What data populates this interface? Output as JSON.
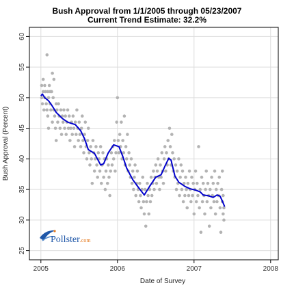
{
  "chart_data": {
    "type": "scatter",
    "title": "Bush Approval from 1/1/2005 through 05/23/2007",
    "subtitle": "Current Trend Estimate: 32.2%",
    "xlabel": "Date of Survey",
    "ylabel": "Bush Approval (Percent)",
    "xlim": [
      2004.85,
      2008.1
    ],
    "ylim": [
      23.5,
      61.5
    ],
    "xticks": [
      2005,
      2006,
      2007,
      2008
    ],
    "xtick_labels": [
      "2005",
      "2006",
      "2007",
      "2008"
    ],
    "yticks": [
      25,
      30,
      35,
      40,
      45,
      50,
      55,
      60
    ],
    "ytick_labels": [
      "25",
      "30",
      "35",
      "40",
      "45",
      "50",
      "55",
      "60"
    ],
    "grid": true,
    "colors": {
      "points": "#b3b3b3",
      "trend": "#0000cc",
      "frame": "#000000",
      "grid": "#dcdcdc"
    },
    "points": [
      [
        2005.01,
        52
      ],
      [
        2005.01,
        50
      ],
      [
        2005.02,
        49
      ],
      [
        2005.03,
        53
      ],
      [
        2005.03,
        51
      ],
      [
        2005.04,
        48
      ],
      [
        2005.05,
        52
      ],
      [
        2005.05,
        50
      ],
      [
        2005.06,
        51
      ],
      [
        2005.07,
        49
      ],
      [
        2005.08,
        57
      ],
      [
        2005.08,
        48
      ],
      [
        2005.09,
        51
      ],
      [
        2005.09,
        47
      ],
      [
        2005.1,
        50
      ],
      [
        2005.1,
        45
      ],
      [
        2005.11,
        52
      ],
      [
        2005.12,
        51
      ],
      [
        2005.12,
        49
      ],
      [
        2005.13,
        48
      ],
      [
        2005.14,
        51
      ],
      [
        2005.15,
        54
      ],
      [
        2005.15,
        46
      ],
      [
        2005.16,
        50
      ],
      [
        2005.17,
        48
      ],
      [
        2005.17,
        53
      ],
      [
        2005.18,
        47
      ],
      [
        2005.19,
        45
      ],
      [
        2005.2,
        49
      ],
      [
        2005.2,
        43
      ],
      [
        2005.21,
        48
      ],
      [
        2005.22,
        46
      ],
      [
        2005.23,
        49
      ],
      [
        2005.24,
        47
      ],
      [
        2005.25,
        45
      ],
      [
        2005.26,
        48
      ],
      [
        2005.27,
        44
      ],
      [
        2005.28,
        47
      ],
      [
        2005.29,
        46
      ],
      [
        2005.3,
        48
      ],
      [
        2005.31,
        45
      ],
      [
        2005.32,
        47
      ],
      [
        2005.33,
        44
      ],
      [
        2005.34,
        46
      ],
      [
        2005.35,
        48
      ],
      [
        2005.36,
        45
      ],
      [
        2005.37,
        47
      ],
      [
        2005.38,
        43
      ],
      [
        2005.39,
        45
      ],
      [
        2005.4,
        46
      ],
      [
        2005.41,
        44
      ],
      [
        2005.42,
        47
      ],
      [
        2005.43,
        45
      ],
      [
        2005.44,
        42
      ],
      [
        2005.45,
        46
      ],
      [
        2005.46,
        44
      ],
      [
        2005.47,
        48
      ],
      [
        2005.48,
        45
      ],
      [
        2005.49,
        43
      ],
      [
        2005.5,
        46
      ],
      [
        2005.51,
        44
      ],
      [
        2005.52,
        42
      ],
      [
        2005.53,
        45
      ],
      [
        2005.54,
        47
      ],
      [
        2005.55,
        43
      ],
      [
        2005.56,
        41
      ],
      [
        2005.57,
        44
      ],
      [
        2005.58,
        46
      ],
      [
        2005.59,
        42
      ],
      [
        2005.6,
        40
      ],
      [
        2005.61,
        43
      ],
      [
        2005.62,
        45
      ],
      [
        2005.63,
        41
      ],
      [
        2005.64,
        39
      ],
      [
        2005.65,
        42
      ],
      [
        2005.66,
        40
      ],
      [
        2005.67,
        36
      ],
      [
        2005.68,
        43
      ],
      [
        2005.69,
        41
      ],
      [
        2005.7,
        38
      ],
      [
        2005.71,
        40
      ],
      [
        2005.72,
        42
      ],
      [
        2005.73,
        39
      ],
      [
        2005.74,
        37
      ],
      [
        2005.75,
        41
      ],
      [
        2005.76,
        40
      ],
      [
        2005.77,
        38
      ],
      [
        2005.78,
        42
      ],
      [
        2005.79,
        36
      ],
      [
        2005.8,
        39
      ],
      [
        2005.81,
        41
      ],
      [
        2005.82,
        37
      ],
      [
        2005.83,
        40
      ],
      [
        2005.84,
        35
      ],
      [
        2005.85,
        38
      ],
      [
        2005.86,
        40
      ],
      [
        2005.87,
        36
      ],
      [
        2005.88,
        39
      ],
      [
        2005.89,
        37
      ],
      [
        2005.9,
        34
      ],
      [
        2005.91,
        38
      ],
      [
        2005.92,
        41
      ],
      [
        2005.93,
        39
      ],
      [
        2005.94,
        42
      ],
      [
        2005.95,
        40
      ],
      [
        2005.96,
        43
      ],
      [
        2005.97,
        38
      ],
      [
        2005.98,
        41
      ],
      [
        2005.99,
        46
      ],
      [
        2006.0,
        50
      ],
      [
        2006.01,
        43
      ],
      [
        2006.02,
        41
      ],
      [
        2006.03,
        44
      ],
      [
        2006.04,
        42
      ],
      [
        2006.05,
        46
      ],
      [
        2006.06,
        40
      ],
      [
        2006.07,
        43
      ],
      [
        2006.08,
        41
      ],
      [
        2006.09,
        47
      ],
      [
        2006.1,
        39
      ],
      [
        2006.11,
        42
      ],
      [
        2006.12,
        40
      ],
      [
        2006.13,
        44
      ],
      [
        2006.14,
        38
      ],
      [
        2006.15,
        41
      ],
      [
        2006.16,
        39
      ],
      [
        2006.17,
        37
      ],
      [
        2006.18,
        40
      ],
      [
        2006.19,
        36
      ],
      [
        2006.2,
        38
      ],
      [
        2006.21,
        35
      ],
      [
        2006.22,
        37
      ],
      [
        2006.23,
        39
      ],
      [
        2006.24,
        34
      ],
      [
        2006.25,
        36
      ],
      [
        2006.26,
        38
      ],
      [
        2006.27,
        35
      ],
      [
        2006.28,
        33
      ],
      [
        2006.29,
        36
      ],
      [
        2006.3,
        34
      ],
      [
        2006.31,
        32
      ],
      [
        2006.32,
        35
      ],
      [
        2006.33,
        37
      ],
      [
        2006.34,
        33
      ],
      [
        2006.35,
        31
      ],
      [
        2006.36,
        35
      ],
      [
        2006.37,
        29
      ],
      [
        2006.38,
        33
      ],
      [
        2006.39,
        36
      ],
      [
        2006.4,
        34
      ],
      [
        2006.41,
        31
      ],
      [
        2006.42,
        35
      ],
      [
        2006.43,
        33
      ],
      [
        2006.44,
        37
      ],
      [
        2006.45,
        34
      ],
      [
        2006.46,
        36
      ],
      [
        2006.47,
        38
      ],
      [
        2006.48,
        35
      ],
      [
        2006.49,
        37
      ],
      [
        2006.5,
        39
      ],
      [
        2006.51,
        36
      ],
      [
        2006.52,
        38
      ],
      [
        2006.53,
        40
      ],
      [
        2006.54,
        37
      ],
      [
        2006.55,
        35
      ],
      [
        2006.56,
        39
      ],
      [
        2006.57,
        37
      ],
      [
        2006.58,
        41
      ],
      [
        2006.59,
        38
      ],
      [
        2006.6,
        36
      ],
      [
        2006.61,
        40
      ],
      [
        2006.62,
        42
      ],
      [
        2006.63,
        38
      ],
      [
        2006.64,
        41
      ],
      [
        2006.65,
        39
      ],
      [
        2006.66,
        43
      ],
      [
        2006.67,
        40
      ],
      [
        2006.68,
        45
      ],
      [
        2006.69,
        42
      ],
      [
        2006.7,
        39
      ],
      [
        2006.71,
        44
      ],
      [
        2006.72,
        41
      ],
      [
        2006.73,
        38
      ],
      [
        2006.74,
        40
      ],
      [
        2006.75,
        37
      ],
      [
        2006.76,
        39
      ],
      [
        2006.77,
        35
      ],
      [
        2006.78,
        38
      ],
      [
        2006.79,
        36
      ],
      [
        2006.8,
        40
      ],
      [
        2006.81,
        34
      ],
      [
        2006.82,
        37
      ],
      [
        2006.83,
        39
      ],
      [
        2006.84,
        35
      ],
      [
        2006.85,
        38
      ],
      [
        2006.86,
        33
      ],
      [
        2006.87,
        36
      ],
      [
        2006.88,
        34
      ],
      [
        2006.89,
        37
      ],
      [
        2006.9,
        35
      ],
      [
        2006.91,
        32
      ],
      [
        2006.92,
        36
      ],
      [
        2006.93,
        34
      ],
      [
        2006.94,
        38
      ],
      [
        2006.95,
        35
      ],
      [
        2006.96,
        33
      ],
      [
        2006.97,
        37
      ],
      [
        2006.98,
        34
      ],
      [
        2006.99,
        36
      ],
      [
        2007.0,
        31
      ],
      [
        2007.01,
        35
      ],
      [
        2007.02,
        38
      ],
      [
        2007.03,
        33
      ],
      [
        2007.04,
        36
      ],
      [
        2007.05,
        34
      ],
      [
        2007.06,
        42
      ],
      [
        2007.07,
        32
      ],
      [
        2007.08,
        35
      ],
      [
        2007.09,
        28
      ],
      [
        2007.1,
        37
      ],
      [
        2007.11,
        33
      ],
      [
        2007.12,
        36
      ],
      [
        2007.13,
        34
      ],
      [
        2007.14,
        31
      ],
      [
        2007.15,
        35
      ],
      [
        2007.16,
        38
      ],
      [
        2007.17,
        33
      ],
      [
        2007.18,
        36
      ],
      [
        2007.19,
        34
      ],
      [
        2007.2,
        29
      ],
      [
        2007.21,
        35
      ],
      [
        2007.22,
        32
      ],
      [
        2007.23,
        37
      ],
      [
        2007.24,
        34
      ],
      [
        2007.25,
        36
      ],
      [
        2007.26,
        33
      ],
      [
        2007.27,
        38
      ],
      [
        2007.28,
        31
      ],
      [
        2007.29,
        35
      ],
      [
        2007.3,
        33
      ],
      [
        2007.31,
        36
      ],
      [
        2007.32,
        34
      ],
      [
        2007.33,
        37
      ],
      [
        2007.34,
        32
      ],
      [
        2007.35,
        28
      ],
      [
        2007.36,
        35
      ],
      [
        2007.37,
        38
      ],
      [
        2007.37,
        33
      ],
      [
        2007.38,
        31
      ],
      [
        2007.38,
        34
      ],
      [
        2007.39,
        30
      ],
      [
        2007.39,
        32
      ]
    ],
    "trend": [
      [
        2005.0,
        50.3
      ],
      [
        2005.02,
        50.6
      ],
      [
        2005.05,
        50.0
      ],
      [
        2005.1,
        49.5
      ],
      [
        2005.14,
        48.8
      ],
      [
        2005.2,
        47.6
      ],
      [
        2005.28,
        46.6
      ],
      [
        2005.35,
        46.0
      ],
      [
        2005.45,
        45.6
      ],
      [
        2005.52,
        44.6
      ],
      [
        2005.57,
        43.3
      ],
      [
        2005.62,
        41.5
      ],
      [
        2005.7,
        40.9
      ],
      [
        2005.78,
        39.0
      ],
      [
        2005.82,
        39.2
      ],
      [
        2005.88,
        41.0
      ],
      [
        2005.95,
        42.3
      ],
      [
        2006.02,
        42.0
      ],
      [
        2006.07,
        40.4
      ],
      [
        2006.12,
        38.5
      ],
      [
        2006.2,
        36.6
      ],
      [
        2006.27,
        35.4
      ],
      [
        2006.35,
        34.1
      ],
      [
        2006.42,
        35.5
      ],
      [
        2006.5,
        37.0
      ],
      [
        2006.57,
        37.4
      ],
      [
        2006.62,
        38.8
      ],
      [
        2006.67,
        40.1
      ],
      [
        2006.7,
        39.8
      ],
      [
        2006.75,
        37.2
      ],
      [
        2006.8,
        36.2
      ],
      [
        2006.88,
        35.5
      ],
      [
        2006.95,
        35.1
      ],
      [
        2007.02,
        34.9
      ],
      [
        2007.08,
        34.6
      ],
      [
        2007.12,
        34.1
      ],
      [
        2007.18,
        34.0
      ],
      [
        2007.25,
        33.7
      ],
      [
        2007.3,
        34.1
      ],
      [
        2007.34,
        33.9
      ],
      [
        2007.37,
        33.1
      ],
      [
        2007.4,
        32.2
      ]
    ]
  },
  "logo": {
    "text": "Pollster",
    "suffix": ".com"
  }
}
